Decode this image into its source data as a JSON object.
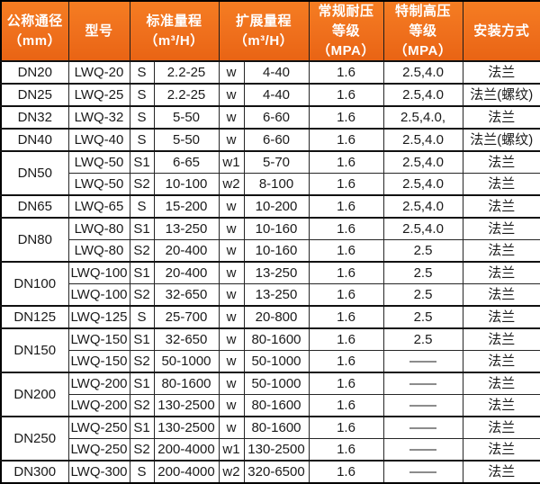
{
  "colors": {
    "header_bg": "#ef6f1c",
    "header_text": "#ffffff",
    "border": "#1c1c1c",
    "body_text": "#1a1a1a",
    "body_bg": "#ffffff"
  },
  "table": {
    "headers": [
      {
        "label": "公称通径\n（mm）",
        "colspan": 1
      },
      {
        "label": "型号",
        "colspan": 1
      },
      {
        "label": "标准量程\n（m³/H）",
        "colspan": 2
      },
      {
        "label": "扩展量程\n（m³/H）",
        "colspan": 2
      },
      {
        "label": "常规耐压\n等级（MPA）",
        "colspan": 1
      },
      {
        "label": "特制高压\n等级（MPA）",
        "colspan": 1
      },
      {
        "label": "安装方式",
        "colspan": 1
      }
    ],
    "rows": [
      {
        "dn": "DN20",
        "dn_rowspan": 1,
        "model": "LWQ-20",
        "std_code": "S",
        "std_range": "2.2-25",
        "ext_code": "w",
        "ext_range": "4-40",
        "normal_mpa": "1.6",
        "high_mpa": "2.5,4.0",
        "install": "法兰"
      },
      {
        "dn": "DN25",
        "dn_rowspan": 1,
        "model": "LWQ-25",
        "std_code": "S",
        "std_range": "2.2-25",
        "ext_code": "w",
        "ext_range": "4-40",
        "normal_mpa": "1.6",
        "high_mpa": "2.5,4.0",
        "install": "法兰(螺纹)"
      },
      {
        "dn": "DN32",
        "dn_rowspan": 1,
        "model": "LWQ-32",
        "std_code": "S",
        "std_range": "5-50",
        "ext_code": "w",
        "ext_range": "6-60",
        "normal_mpa": "1.6",
        "high_mpa": "2.5,4.0,",
        "install": "法兰"
      },
      {
        "dn": "DN40",
        "dn_rowspan": 1,
        "model": "LWQ-40",
        "std_code": "S",
        "std_range": "5-50",
        "ext_code": "w",
        "ext_range": "6-60",
        "normal_mpa": "1.6",
        "high_mpa": "2.5,4.0",
        "install": "法兰(螺纹)"
      },
      {
        "dn": "DN50",
        "dn_rowspan": 2,
        "model": "LWQ-50",
        "std_code": "S1",
        "std_range": "6-65",
        "ext_code": "w1",
        "ext_range": "5-70",
        "normal_mpa": "1.6",
        "high_mpa": "2.5,4.0",
        "install": "法兰"
      },
      {
        "dn": null,
        "dn_rowspan": 0,
        "model": "LWQ-50",
        "std_code": "S2",
        "std_range": "10-100",
        "ext_code": "w2",
        "ext_range": "8-100",
        "normal_mpa": "1.6",
        "high_mpa": "2.5,4.0",
        "install": "法兰"
      },
      {
        "dn": "DN65",
        "dn_rowspan": 1,
        "model": "LWQ-65",
        "std_code": "S",
        "std_range": "15-200",
        "ext_code": "w",
        "ext_range": "10-200",
        "normal_mpa": "1.6",
        "high_mpa": "2.5,4.0",
        "install": "法兰"
      },
      {
        "dn": "DN80",
        "dn_rowspan": 2,
        "model": "LWQ-80",
        "std_code": "S1",
        "std_range": "13-250",
        "ext_code": "w",
        "ext_range": "10-160",
        "normal_mpa": "1.6",
        "high_mpa": "2.5,4.0",
        "install": "法兰"
      },
      {
        "dn": null,
        "dn_rowspan": 0,
        "model": "LWQ-80",
        "std_code": "S2",
        "std_range": "20-400",
        "ext_code": "w",
        "ext_range": "10-160",
        "normal_mpa": "1.6",
        "high_mpa": "2.5",
        "install": "法兰"
      },
      {
        "dn": "DN100",
        "dn_rowspan": 2,
        "model": "LWQ-100",
        "std_code": "S1",
        "std_range": "20-400",
        "ext_code": "w",
        "ext_range": "13-250",
        "normal_mpa": "1.6",
        "high_mpa": "2.5",
        "install": "法兰"
      },
      {
        "dn": null,
        "dn_rowspan": 0,
        "model": "LWQ-100",
        "std_code": "S2",
        "std_range": "32-650",
        "ext_code": "w",
        "ext_range": "13-250",
        "normal_mpa": "1.6",
        "high_mpa": "2.5",
        "install": "法兰"
      },
      {
        "dn": "DN125",
        "dn_rowspan": 1,
        "model": "LWQ-125",
        "std_code": "S",
        "std_range": "25-700",
        "ext_code": "w",
        "ext_range": "20-800",
        "normal_mpa": "1.6",
        "high_mpa": "2.5",
        "install": "法兰"
      },
      {
        "dn": "DN150",
        "dn_rowspan": 2,
        "model": "LWQ-150",
        "std_code": "S1",
        "std_range": "32-650",
        "ext_code": "w",
        "ext_range": "80-1600",
        "normal_mpa": "1.6",
        "high_mpa": "2.5",
        "install": "法兰"
      },
      {
        "dn": null,
        "dn_rowspan": 0,
        "model": "LWQ-150",
        "std_code": "S2",
        "std_range": "50-1000",
        "ext_code": "w",
        "ext_range": "50-1000",
        "normal_mpa": "1.6",
        "high_mpa": "——",
        "install": "法兰"
      },
      {
        "dn": "DN200",
        "dn_rowspan": 2,
        "model": "LWQ-200",
        "std_code": "S1",
        "std_range": "80-1600",
        "ext_code": "w",
        "ext_range": "50-1000",
        "normal_mpa": "1.6",
        "high_mpa": "——",
        "install": "法兰"
      },
      {
        "dn": null,
        "dn_rowspan": 0,
        "model": "LWQ-200",
        "std_code": "S2",
        "std_range": "130-2500",
        "ext_code": "w",
        "ext_range": "80-1600",
        "normal_mpa": "1.6",
        "high_mpa": "——",
        "install": "法兰"
      },
      {
        "dn": "DN250",
        "dn_rowspan": 2,
        "model": "LWQ-250",
        "std_code": "S1",
        "std_range": "130-2500",
        "ext_code": "w",
        "ext_range": "80-1600",
        "normal_mpa": "1.6",
        "high_mpa": "——",
        "install": "法兰"
      },
      {
        "dn": null,
        "dn_rowspan": 0,
        "model": "LWQ-250",
        "std_code": "S2",
        "std_range": "200-4000",
        "ext_code": "w1",
        "ext_range": "130-2500",
        "normal_mpa": "1.6",
        "high_mpa": "——",
        "install": "法兰"
      },
      {
        "dn": "DN300",
        "dn_rowspan": 1,
        "model": "LWQ-300",
        "std_code": "S",
        "std_range": "200-4000",
        "ext_code": "w2",
        "ext_range": "320-6500",
        "normal_mpa": "1.6",
        "high_mpa": "——",
        "install": "法兰"
      }
    ]
  }
}
